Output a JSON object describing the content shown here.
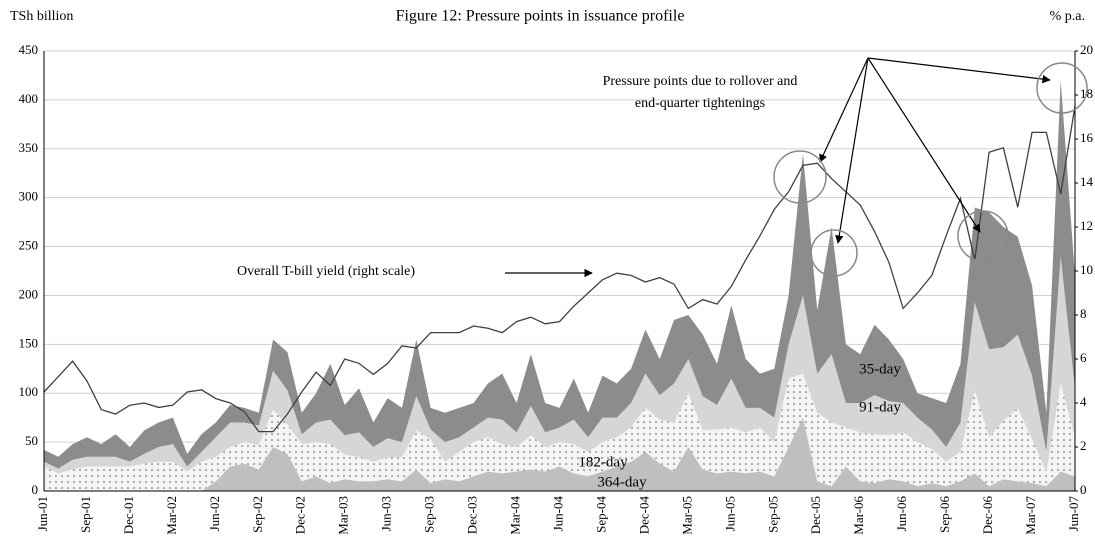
{
  "chart_data": {
    "type": "stacked_area",
    "title": "Figure 12: Pressure points in issuance profile",
    "y_label": "TSh billion",
    "y2_label": "% p.a.",
    "annotations": [
      "Pressure points due to rollover and",
      "end-quarter tightenings",
      "Overall T-bill yield (right scale)"
    ],
    "categories": [
      "Jun-01",
      null,
      null,
      "Sep-01",
      null,
      null,
      "Dec-01",
      null,
      null,
      "Mar-02",
      null,
      null,
      "Jun-02",
      null,
      null,
      "Sep-02",
      null,
      null,
      "Dec-02",
      null,
      null,
      "Mar-03",
      null,
      null,
      "Jun-03",
      null,
      null,
      "Sep-03",
      null,
      null,
      "Dec-03",
      null,
      null,
      "Mar-04",
      null,
      null,
      "Jun-04",
      null,
      null,
      "Sep-04",
      null,
      null,
      "Dec-04",
      null,
      null,
      "Mar-05",
      null,
      null,
      "Jun-05",
      null,
      null,
      "Sep-05",
      null,
      null,
      "Dec-05",
      null,
      null,
      "Mar-06",
      null,
      null,
      "Jun-06",
      null,
      null,
      "Sep-06",
      null,
      null,
      "Dec-06",
      null,
      null,
      "Mar-07",
      null,
      null,
      "Jun-07"
    ],
    "series": [
      {
        "name": "35-day",
        "color": "#bfbfbf",
        "values": [
          0,
          0,
          0,
          0,
          0,
          0,
          0,
          0,
          0,
          0,
          0,
          0,
          10,
          25,
          28,
          22,
          45,
          38,
          10,
          15,
          8,
          12,
          10,
          10,
          12,
          10,
          22,
          8,
          12,
          10,
          15,
          20,
          18,
          20,
          22,
          20,
          25,
          18,
          15,
          20,
          25,
          30,
          40,
          28,
          20,
          45,
          22,
          18,
          20,
          18,
          20,
          15,
          45,
          75,
          10,
          5,
          25,
          10,
          8,
          12,
          10,
          5,
          8,
          5,
          10,
          18,
          5,
          12,
          10,
          8,
          5,
          20,
          15
        ]
      },
      {
        "name": "91-day",
        "color": "#f4f4f4",
        "values": [
          25,
          18,
          22,
          25,
          25,
          25,
          25,
          28,
          30,
          30,
          20,
          30,
          25,
          20,
          22,
          25,
          38,
          30,
          38,
          35,
          40,
          25,
          25,
          20,
          22,
          25,
          40,
          45,
          18,
          30,
          35,
          35,
          30,
          25,
          35,
          25,
          25,
          30,
          25,
          30,
          30,
          35,
          45,
          45,
          50,
          55,
          40,
          45,
          45,
          42,
          45,
          35,
          70,
          45,
          70,
          65,
          40,
          50,
          50,
          45,
          50,
          45,
          35,
          25,
          30,
          85,
          50,
          60,
          75,
          45,
          15,
          90,
          40
        ]
      },
      {
        "name": "182-day",
        "color": "#d6d6d6",
        "values": [
          5,
          5,
          10,
          10,
          10,
          10,
          5,
          10,
          15,
          18,
          5,
          10,
          20,
          25,
          20,
          20,
          40,
          35,
          10,
          20,
          25,
          20,
          25,
          15,
          20,
          15,
          35,
          10,
          20,
          15,
          15,
          20,
          25,
          15,
          30,
          15,
          15,
          25,
          15,
          25,
          20,
          25,
          35,
          25,
          40,
          35,
          35,
          25,
          50,
          25,
          20,
          25,
          35,
          80,
          40,
          70,
          25,
          30,
          40,
          35,
          30,
          25,
          20,
          15,
          30,
          90,
          90,
          75,
          75,
          65,
          20,
          130,
          50
        ]
      },
      {
        "name": "364-day",
        "color": "#8c8c8c",
        "values": [
          12,
          12,
          16,
          20,
          13,
          23,
          15,
          24,
          25,
          27,
          13,
          18,
          15,
          18,
          15,
          13,
          32,
          39,
          22,
          30,
          57,
          31,
          45,
          25,
          41,
          35,
          58,
          22,
          30,
          30,
          25,
          35,
          47,
          30,
          53,
          30,
          20,
          42,
          25,
          43,
          35,
          35,
          45,
          37,
          65,
          45,
          63,
          42,
          75,
          50,
          35,
          50,
          50,
          145,
          65,
          130,
          60,
          50,
          72,
          63,
          45,
          25,
          32,
          45,
          60,
          97,
          140,
          123,
          100,
          92,
          40,
          180,
          115
        ]
      },
      {
        "name": "Overall T-bill yield",
        "color": "#404040",
        "axis": "y2",
        "values": [
          4.5,
          5.2,
          5.9,
          5.0,
          3.7,
          3.5,
          3.9,
          4.0,
          3.8,
          3.9,
          4.5,
          4.6,
          4.2,
          4.0,
          3.6,
          2.7,
          2.7,
          3.5,
          4.5,
          5.4,
          4.8,
          6.0,
          5.8,
          5.3,
          5.8,
          6.6,
          6.5,
          7.2,
          7.2,
          7.2,
          7.5,
          7.4,
          7.2,
          7.7,
          7.9,
          7.6,
          7.7,
          8.4,
          9.0,
          9.6,
          9.9,
          9.8,
          9.5,
          9.7,
          9.4,
          8.3,
          8.7,
          8.5,
          9.3,
          10.5,
          11.6,
          12.8,
          13.6,
          14.8,
          14.9,
          14.2,
          13.6,
          13.0,
          11.8,
          10.4,
          8.3,
          9.0,
          9.8,
          11.6,
          13.3,
          10.5,
          15.4,
          15.6,
          12.9,
          16.3,
          16.3,
          13.5,
          17.5
        ]
      }
    ],
    "ylim": [
      0,
      450
    ],
    "yticks": [
      0,
      50,
      100,
      150,
      200,
      250,
      300,
      350,
      400,
      450
    ],
    "y2lim": [
      0,
      20
    ],
    "y2ticks": [
      0,
      2,
      4,
      6,
      8,
      10,
      12,
      14,
      16,
      18,
      20
    ],
    "grid": true
  }
}
